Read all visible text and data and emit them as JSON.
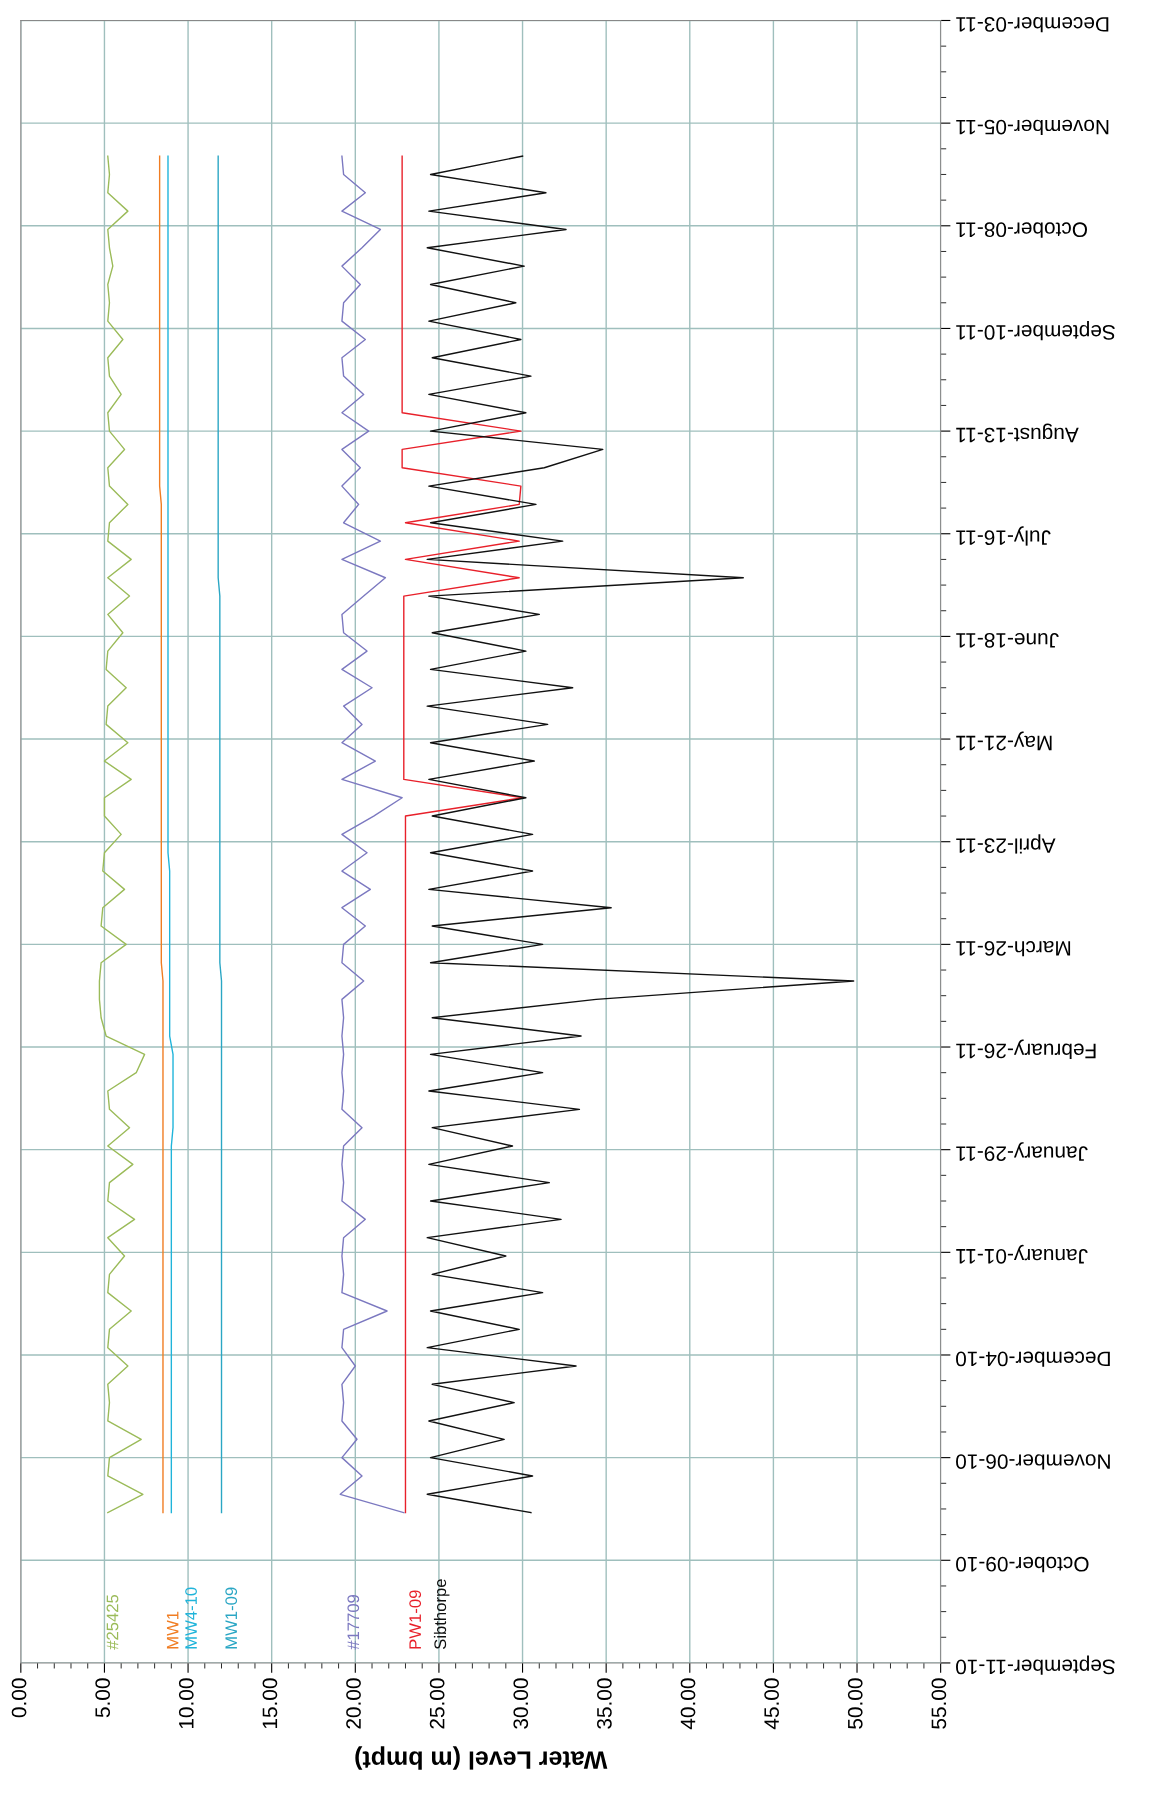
{
  "chart_data": {
    "type": "line",
    "orientation": "horizontal",
    "xlabel": "Water Level (m bmpt)",
    "x": [
      "2010-10-22",
      "2010-10-27",
      "2010-11-01",
      "2010-11-06",
      "2010-11-11",
      "2010-11-16",
      "2010-11-21",
      "2010-11-26",
      "2010-12-01",
      "2010-12-06",
      "2010-12-11",
      "2010-12-16",
      "2010-12-21",
      "2010-12-26",
      "2010-12-31",
      "2011-01-05",
      "2011-01-10",
      "2011-01-15",
      "2011-01-20",
      "2011-01-25",
      "2011-01-30",
      "2011-02-04",
      "2011-02-09",
      "2011-02-14",
      "2011-02-19",
      "2011-02-24",
      "2011-03-01",
      "2011-03-06",
      "2011-03-11",
      "2011-03-16",
      "2011-03-21",
      "2011-03-26",
      "2011-03-31",
      "2011-04-05",
      "2011-04-10",
      "2011-04-15",
      "2011-04-20",
      "2011-04-25",
      "2011-04-30",
      "2011-05-05",
      "2011-05-10",
      "2011-05-15",
      "2011-05-20",
      "2011-05-25",
      "2011-05-30",
      "2011-06-04",
      "2011-06-09",
      "2011-06-14",
      "2011-06-19",
      "2011-06-24",
      "2011-06-29",
      "2011-07-04",
      "2011-07-09",
      "2011-07-14",
      "2011-07-19",
      "2011-07-24",
      "2011-07-29",
      "2011-08-03",
      "2011-08-08",
      "2011-08-13",
      "2011-08-18",
      "2011-08-23",
      "2011-08-28",
      "2011-09-02",
      "2011-09-07",
      "2011-09-12",
      "2011-09-17",
      "2011-09-22",
      "2011-09-27",
      "2011-10-02",
      "2011-10-07",
      "2011-10-12",
      "2011-10-17",
      "2011-10-22",
      "2011-10-27"
    ],
    "series": [
      {
        "name": "#25425",
        "color": "#9bbb59",
        "values": [
          5.2,
          7.3,
          5.2,
          5.3,
          7.2,
          5.2,
          5.3,
          5.2,
          6.4,
          5.2,
          5.3,
          6.6,
          5.2,
          5.3,
          6.2,
          5.2,
          6.8,
          5.2,
          5.3,
          6.7,
          5.2,
          6.5,
          5.3,
          5.2,
          6.9,
          7.4,
          5.1,
          4.8,
          4.7,
          4.7,
          4.8,
          6.3,
          4.8,
          4.9,
          6.2,
          4.9,
          5.0,
          6.0,
          5.0,
          5.0,
          6.6,
          5.0,
          6.4,
          5.1,
          5.2,
          6.3,
          5.1,
          5.2,
          6.1,
          5.2,
          6.5,
          5.2,
          6.6,
          5.2,
          5.3,
          6.4,
          5.3,
          5.2,
          6.2,
          5.3,
          5.2,
          6.0,
          5.3,
          5.2,
          6.1,
          5.2,
          5.3,
          5.2,
          5.5,
          5.3,
          5.2,
          6.4,
          5.2,
          5.3,
          5.2
        ]
      },
      {
        "name": "MW1",
        "color": "#f07d22",
        "values": [
          8.5,
          8.5,
          8.5,
          8.5,
          8.5,
          8.5,
          8.5,
          8.5,
          8.5,
          8.5,
          8.5,
          8.5,
          8.5,
          8.5,
          8.5,
          8.5,
          8.5,
          8.5,
          8.5,
          8.5,
          8.5,
          8.5,
          8.5,
          8.5,
          8.5,
          8.5,
          8.5,
          8.5,
          8.5,
          8.5,
          8.4,
          8.4,
          8.4,
          8.4,
          8.4,
          8.4,
          8.4,
          8.4,
          8.4,
          8.4,
          8.4,
          8.4,
          8.4,
          8.4,
          8.4,
          8.4,
          8.4,
          8.4,
          8.4,
          8.4,
          8.4,
          8.4,
          8.4,
          8.4,
          8.4,
          8.4,
          8.3,
          8.3,
          8.3,
          8.3,
          8.3,
          8.3,
          8.3,
          8.3,
          8.3,
          8.3,
          8.3,
          8.3,
          8.3,
          8.3,
          8.3,
          8.3,
          8.3,
          8.3,
          8.3
        ]
      },
      {
        "name": "MW4-10",
        "color": "#1fb4da",
        "values": [
          9.0,
          9.0,
          9.0,
          9.0,
          9.0,
          9.0,
          9.0,
          9.0,
          9.0,
          9.0,
          9.0,
          9.0,
          9.0,
          9.0,
          9.0,
          9.0,
          9.0,
          9.0,
          9.0,
          9.0,
          9.0,
          9.1,
          9.1,
          9.1,
          9.1,
          9.1,
          8.9,
          8.9,
          8.9,
          8.9,
          8.9,
          8.9,
          8.9,
          8.9,
          8.9,
          8.9,
          8.8,
          8.8,
          8.8,
          8.8,
          8.8,
          8.8,
          8.8,
          8.8,
          8.8,
          8.8,
          8.8,
          8.8,
          8.8,
          8.8,
          8.8,
          8.8,
          8.8,
          8.8,
          8.8,
          8.8,
          8.8,
          8.8,
          8.8,
          8.8,
          8.8,
          8.8,
          8.8,
          8.8,
          8.8,
          8.8,
          8.8,
          8.8,
          8.8,
          8.8,
          8.8,
          8.8,
          8.8,
          8.8,
          8.8
        ]
      },
      {
        "name": "MW1-09",
        "color": "#2aa6c4",
        "values": [
          12.0,
          12.0,
          12.0,
          12.0,
          12.0,
          12.0,
          12.0,
          12.0,
          12.0,
          12.0,
          12.0,
          12.0,
          12.0,
          12.0,
          12.0,
          12.0,
          12.0,
          12.0,
          12.0,
          12.0,
          12.0,
          12.0,
          12.0,
          12.0,
          12.0,
          12.0,
          12.0,
          12.0,
          12.0,
          12.0,
          11.9,
          11.9,
          11.9,
          11.9,
          11.9,
          11.9,
          11.9,
          11.9,
          11.9,
          11.9,
          11.9,
          11.9,
          11.9,
          11.9,
          11.9,
          11.9,
          11.9,
          11.9,
          11.9,
          11.9,
          11.9,
          11.8,
          11.8,
          11.8,
          11.8,
          11.8,
          11.8,
          11.8,
          11.8,
          11.8,
          11.8,
          11.8,
          11.8,
          11.8,
          11.8,
          11.8,
          11.8,
          11.8,
          11.8,
          11.8,
          11.8,
          11.8,
          11.8,
          11.8,
          11.8
        ]
      },
      {
        "name": "#17709",
        "color": "#7b78c0",
        "values": [
          22.9,
          19.1,
          20.4,
          19.2,
          20.1,
          19.2,
          19.3,
          19.2,
          20.0,
          19.2,
          19.3,
          21.9,
          19.2,
          19.3,
          19.2,
          19.3,
          20.6,
          19.2,
          19.3,
          19.2,
          19.3,
          20.4,
          19.2,
          19.3,
          19.2,
          19.3,
          19.2,
          19.3,
          19.2,
          20.5,
          19.2,
          19.3,
          20.6,
          19.2,
          20.9,
          19.2,
          20.7,
          19.2,
          21.1,
          22.8,
          19.2,
          21.2,
          19.2,
          20.4,
          19.3,
          21.0,
          19.2,
          20.7,
          19.3,
          19.2,
          20.5,
          21.8,
          19.2,
          21.5,
          19.3,
          20.2,
          19.2,
          20.3,
          19.2,
          20.8,
          19.2,
          20.5,
          19.3,
          19.2,
          20.6,
          19.2,
          19.3,
          20.3,
          19.2,
          20.4,
          21.5,
          19.2,
          20.6,
          19.3,
          19.2
        ]
      },
      {
        "name": "PW1-09",
        "color": "#e8202a",
        "values": [
          23.0,
          23.0,
          23.0,
          23.0,
          23.0,
          23.0,
          23.0,
          23.0,
          23.0,
          23.0,
          23.0,
          23.0,
          23.0,
          23.0,
          23.0,
          23.0,
          23.0,
          23.0,
          23.0,
          23.0,
          23.0,
          23.0,
          23.0,
          23.0,
          23.0,
          23.0,
          23.0,
          23.0,
          23.0,
          23.0,
          23.0,
          23.0,
          23.0,
          23.0,
          23.0,
          23.0,
          23.0,
          23.0,
          23.0,
          30.0,
          22.9,
          22.9,
          22.9,
          22.9,
          22.9,
          22.9,
          22.9,
          22.9,
          22.9,
          22.9,
          22.9,
          29.8,
          23.0,
          29.8,
          23.0,
          29.8,
          29.9,
          22.8,
          22.8,
          29.9,
          22.8,
          22.8,
          22.8,
          22.8,
          22.8,
          22.8,
          22.8,
          22.8,
          22.8,
          22.8,
          22.8,
          22.8,
          22.8,
          22.8,
          22.8
        ]
      },
      {
        "name": "Sibthorpe",
        "color": "#111111",
        "values": [
          30.5,
          24.3,
          30.6,
          24.5,
          28.9,
          24.4,
          29.5,
          24.6,
          33.2,
          24.3,
          29.8,
          24.5,
          31.2,
          24.6,
          29.0,
          24.3,
          32.3,
          24.5,
          31.6,
          24.4,
          29.4,
          24.6,
          33.4,
          24.4,
          31.2,
          24.5,
          33.5,
          24.6,
          34.4,
          49.8,
          24.5,
          31.2,
          24.6,
          35.3,
          24.4,
          30.6,
          24.5,
          30.6,
          24.6,
          30.2,
          24.4,
          30.7,
          24.5,
          31.5,
          24.3,
          33.0,
          24.5,
          30.2,
          24.6,
          31.0,
          24.4,
          43.2,
          24.3,
          32.4,
          24.5,
          30.8,
          24.4,
          31.3,
          34.8,
          24.5,
          30.2,
          24.4,
          30.5,
          24.6,
          29.9,
          24.4,
          29.6,
          24.5,
          30.1,
          24.3,
          32.6,
          24.4,
          31.4,
          24.5,
          30.0
        ]
      }
    ],
    "xlim": [
      0,
      55
    ],
    "xticks": [
      {
        "value": 0,
        "label": "0.00"
      },
      {
        "value": 5,
        "label": "5.00"
      },
      {
        "value": 10,
        "label": "10.00"
      },
      {
        "value": 15,
        "label": "15.00"
      },
      {
        "value": 20,
        "label": "20.00"
      },
      {
        "value": 25,
        "label": "25.00"
      },
      {
        "value": 30,
        "label": "30.00"
      },
      {
        "value": 35,
        "label": "35.00"
      },
      {
        "value": 40,
        "label": "40.00"
      },
      {
        "value": 45,
        "label": "45.00"
      },
      {
        "value": 50,
        "label": "50.00"
      },
      {
        "value": 55,
        "label": "55.00"
      }
    ],
    "ylim": [
      "2010-09-11",
      "2011-12-03"
    ],
    "yticks": [
      {
        "value": "2010-09-11",
        "label": "September-11-10"
      },
      {
        "value": "2010-10-09",
        "label": "October-09-10"
      },
      {
        "value": "2010-11-06",
        "label": "November-06-10"
      },
      {
        "value": "2010-12-04",
        "label": "December-04-10"
      },
      {
        "value": "2011-01-01",
        "label": "January-01-11"
      },
      {
        "value": "2011-01-29",
        "label": "January-29-11"
      },
      {
        "value": "2011-02-26",
        "label": "February-26-11"
      },
      {
        "value": "2011-03-26",
        "label": "March-26-11"
      },
      {
        "value": "2011-04-23",
        "label": "April-23-11"
      },
      {
        "value": "2011-05-21",
        "label": "May-21-11"
      },
      {
        "value": "2011-06-18",
        "label": "June-18-11"
      },
      {
        "value": "2011-07-16",
        "label": "July-16-11"
      },
      {
        "value": "2011-08-13",
        "label": "August-13-11"
      },
      {
        "value": "2011-09-10",
        "label": "September-10-11"
      },
      {
        "value": "2011-10-08",
        "label": "October-08-11"
      },
      {
        "value": "2011-11-05",
        "label": "November-05-11"
      },
      {
        "value": "2011-12-03",
        "label": "December-03-11"
      }
    ],
    "grid": true
  }
}
